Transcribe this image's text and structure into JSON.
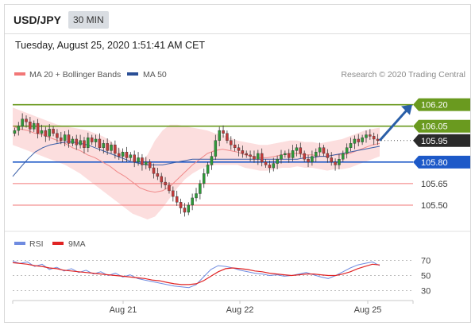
{
  "header": {
    "pair": "USD/JPY",
    "timeframe": "30 MIN"
  },
  "date_line": "Tuesday, August 25, 2020 1:51:41 AM CET",
  "credit": "Research © 2020 Trading Central",
  "colors": {
    "green": "#6a9a1f",
    "blue": "#1d59c8",
    "red_line": "#f27777",
    "band": "#fbd3d3",
    "ma20": "#f08a8a",
    "ma50": "#3a5fa8",
    "candle_up": "#2e9b39",
    "candle_down": "#c43b3b",
    "arrow": "#2a5fa8",
    "rsi": "#6f8be0",
    "rsi_ma": "#e02424"
  },
  "chart_data": [
    {
      "type": "candlestick",
      "legend": [
        "MA 20 + Bollinger Bands",
        "MA 50"
      ],
      "x_tick_labels": [
        "Aug 21",
        "Aug 22",
        "Aug 25"
      ],
      "ylim": [
        105.35,
        106.32
      ],
      "levels": [
        {
          "value": 106.2,
          "label": "106.20",
          "style": "green-box"
        },
        {
          "value": 106.05,
          "label": "106.05",
          "style": "green-box"
        },
        {
          "value": 105.95,
          "label": "105.95",
          "style": "black-box"
        },
        {
          "value": 105.8,
          "label": "105.80",
          "style": "blue-box"
        },
        {
          "value": 105.65,
          "label": "105.65",
          "style": "red-text"
        },
        {
          "value": 105.5,
          "label": "105.50",
          "style": "red-text"
        }
      ],
      "price_path": [
        106.02,
        106.05,
        106.1,
        106.08,
        106.03,
        106.07,
        106.0,
        106.02,
        105.98,
        106.03,
        106.0,
        105.97,
        105.95,
        105.99,
        105.93,
        105.96,
        105.92,
        105.95,
        105.9,
        105.97,
        105.94,
        105.96,
        105.9,
        105.93,
        105.88,
        105.92,
        105.86,
        105.84,
        105.87,
        105.83,
        105.85,
        105.8,
        105.83,
        105.78,
        105.8,
        105.76,
        105.72,
        105.7,
        105.66,
        105.64,
        105.6,
        105.56,
        105.52,
        105.48,
        105.45,
        105.5,
        105.55,
        105.58,
        105.65,
        105.72,
        105.78,
        105.84,
        105.95,
        106.02,
        106.0,
        105.95,
        105.92,
        105.9,
        105.88,
        105.86,
        105.85,
        105.84,
        105.82,
        105.86,
        105.8,
        105.78,
        105.76,
        105.79,
        105.82,
        105.85,
        105.86,
        105.83,
        105.88,
        105.9,
        105.86,
        105.82,
        105.8,
        105.84,
        105.87,
        105.9,
        105.86,
        105.83,
        105.8,
        105.78,
        105.82,
        105.86,
        105.9,
        105.93,
        105.96,
        105.94,
        105.97,
        105.99,
        105.98,
        105.96,
        105.95
      ],
      "ma20": [
        106.05,
        106.03,
        106.02,
        106.0,
        105.99,
        105.97,
        105.95,
        105.93,
        105.9,
        105.88,
        105.85,
        105.83,
        105.8,
        105.77,
        105.73,
        105.7,
        105.66,
        105.62,
        105.6,
        105.59,
        105.6,
        105.63,
        105.68,
        105.73,
        105.78,
        105.82,
        105.86,
        105.88,
        105.89,
        105.88,
        105.87,
        105.85,
        105.84,
        105.83,
        105.83,
        105.84,
        105.85,
        105.86,
        105.86,
        105.85,
        105.85,
        105.84,
        105.84,
        105.85,
        105.85,
        105.86,
        105.88,
        105.9,
        105.92,
        105.93
      ],
      "ma50": [
        105.7,
        105.76,
        105.82,
        105.87,
        105.9,
        105.92,
        105.93,
        105.94,
        105.94,
        105.93,
        105.92,
        105.9,
        105.88,
        105.86,
        105.84,
        105.82,
        105.8,
        105.79,
        105.78,
        105.78,
        105.78,
        105.79,
        105.8,
        105.81,
        105.82,
        105.82,
        105.82,
        105.82,
        105.82,
        105.82,
        105.82,
        105.82,
        105.82,
        105.82,
        105.82,
        105.82,
        105.82,
        105.82,
        105.82,
        105.83,
        105.83,
        105.84,
        105.84,
        105.85,
        105.86,
        105.87,
        105.88,
        105.89,
        105.9,
        105.91
      ],
      "band_upper": [
        106.18,
        106.16,
        106.14,
        106.12,
        106.1,
        106.08,
        106.06,
        106.05,
        106.04,
        106.03,
        106.02,
        106.0,
        105.98,
        105.95,
        105.9,
        105.86,
        105.82,
        105.8,
        105.85,
        105.95,
        106.02,
        106.06,
        106.06,
        106.05,
        106.04,
        106.03,
        106.02,
        106.0,
        105.99,
        105.97,
        105.95,
        105.94,
        105.93,
        105.92,
        105.92,
        105.93,
        105.94,
        105.95,
        105.95,
        105.94,
        105.94,
        105.93,
        105.94,
        105.95,
        105.96,
        105.98,
        106.0,
        106.02,
        106.03,
        106.04
      ],
      "band_lower": [
        105.92,
        105.9,
        105.88,
        105.86,
        105.84,
        105.82,
        105.8,
        105.78,
        105.75,
        105.72,
        105.68,
        105.64,
        105.6,
        105.56,
        105.52,
        105.48,
        105.44,
        105.42,
        105.4,
        105.42,
        105.48,
        105.55,
        105.62,
        105.68,
        105.72,
        105.75,
        105.77,
        105.78,
        105.78,
        105.78,
        105.78,
        105.76,
        105.75,
        105.74,
        105.74,
        105.75,
        105.76,
        105.76,
        105.77,
        105.76,
        105.76,
        105.75,
        105.74,
        105.75,
        105.75,
        105.76,
        105.78,
        105.8,
        105.82,
        105.84
      ]
    },
    {
      "type": "line",
      "legend": [
        "RSI",
        "9MA"
      ],
      "y_tick_labels": [
        "70",
        "50",
        "30"
      ],
      "ylim": [
        20,
        80
      ],
      "series": [
        {
          "name": "RSI",
          "values": [
            69,
            66,
            68,
            62,
            65,
            58,
            61,
            56,
            59,
            54,
            57,
            52,
            55,
            50,
            53,
            48,
            51,
            46,
            44,
            42,
            40,
            38,
            36,
            35,
            34,
            38,
            48,
            58,
            63,
            62,
            60,
            57,
            55,
            53,
            52,
            50,
            51,
            49,
            50,
            52,
            54,
            51,
            48,
            46,
            50,
            55,
            60,
            64,
            66,
            68,
            63
          ]
        },
        {
          "name": "9MA",
          "values": [
            67,
            66,
            65,
            63,
            62,
            60,
            59,
            57,
            56,
            55,
            54,
            53,
            52,
            51,
            50,
            49,
            48,
            47,
            46,
            44,
            43,
            41,
            39,
            38,
            38,
            39,
            43,
            49,
            55,
            59,
            60,
            59,
            58,
            56,
            55,
            53,
            52,
            51,
            50,
            51,
            52,
            52,
            51,
            50,
            50,
            52,
            55,
            59,
            62,
            65,
            64
          ]
        }
      ]
    }
  ]
}
